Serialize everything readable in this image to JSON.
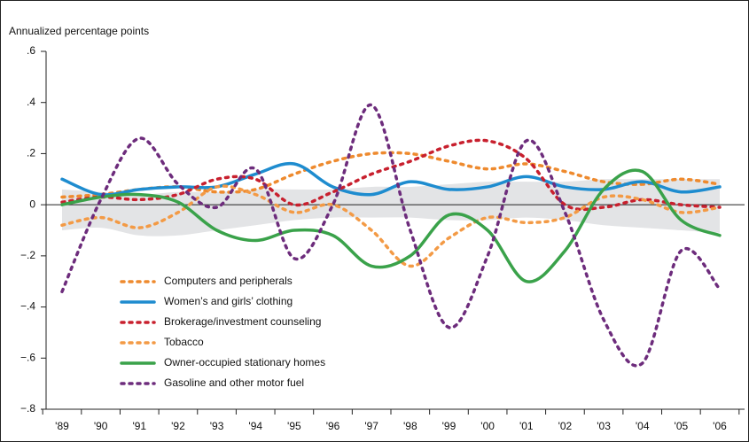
{
  "chart_data": {
    "type": "line",
    "ylabel": "Annualized percentage points",
    "categories": [
      "'89",
      "'90",
      "'91",
      "'92",
      "'93",
      "'94",
      "'95",
      "'96",
      "'97",
      "'98",
      "'99",
      "'00",
      "'01",
      "'02",
      "'03",
      "'04",
      "'05",
      "'06"
    ],
    "ylim": [
      -0.8,
      0.6
    ],
    "yticks": [
      {
        "value": 0.6,
        "label": ".6"
      },
      {
        "value": 0.4,
        "label": ".4"
      },
      {
        "value": 0.2,
        "label": ".2"
      },
      0,
      {
        "value": -0.2,
        "label": "−.2"
      },
      {
        "value": -0.4,
        "label": "−.4"
      },
      {
        "value": -0.6,
        "label": "−.6"
      },
      {
        "value": -0.8,
        "label": "−.8"
      }
    ],
    "band": {
      "color": "#e3e4e6",
      "lower": [
        -0.1,
        -0.09,
        -0.12,
        -0.12,
        -0.1,
        -0.08,
        -0.06,
        -0.05,
        -0.05,
        -0.05,
        -0.06,
        -0.06,
        -0.05,
        -0.06,
        -0.08,
        -0.09,
        -0.1,
        -0.11
      ],
      "upper": [
        0.06,
        0.05,
        0.04,
        0.05,
        0.05,
        0.06,
        0.06,
        0.06,
        0.07,
        0.07,
        0.08,
        0.09,
        0.09,
        0.09,
        0.1,
        0.1,
        0.1,
        0.1
      ]
    },
    "series": [
      {
        "name": "Computers and peripherals",
        "color": "#ee8a2e",
        "dashed": true,
        "values": [
          0.03,
          0.04,
          0.06,
          0.07,
          0.05,
          0.06,
          0.12,
          0.17,
          0.2,
          0.2,
          0.17,
          0.14,
          0.16,
          0.13,
          0.09,
          0.08,
          0.1,
          0.08
        ]
      },
      {
        "name": "Women’s and girls’ clothing",
        "color": "#1e8ccf",
        "dashed": false,
        "values": [
          0.1,
          0.04,
          0.06,
          0.07,
          0.07,
          0.12,
          0.16,
          0.07,
          0.04,
          0.09,
          0.06,
          0.07,
          0.11,
          0.07,
          0.06,
          0.09,
          0.05,
          0.07
        ]
      },
      {
        "name": "Brokerage/investment counseling",
        "color": "#c8202e",
        "dashed": true,
        "values": [
          0.01,
          0.03,
          0.02,
          0.04,
          0.1,
          0.1,
          0.0,
          0.05,
          0.12,
          0.17,
          0.23,
          0.25,
          0.18,
          0.0,
          -0.01,
          0.02,
          0.0,
          -0.01
        ]
      },
      {
        "name": "Tobacco",
        "color": "#f39a45",
        "dashed": true,
        "values": [
          -0.08,
          -0.05,
          -0.09,
          -0.03,
          0.07,
          0.04,
          -0.03,
          0.0,
          -0.1,
          -0.24,
          -0.13,
          -0.05,
          -0.07,
          -0.05,
          0.03,
          0.02,
          -0.03,
          -0.01
        ]
      },
      {
        "name": "Owner-occupied stationary homes",
        "color": "#3aa24a",
        "dashed": false,
        "values": [
          0.0,
          0.03,
          0.04,
          0.01,
          -0.1,
          -0.14,
          -0.1,
          -0.12,
          -0.24,
          -0.2,
          -0.04,
          -0.1,
          -0.3,
          -0.18,
          0.06,
          0.13,
          -0.06,
          -0.12
        ]
      },
      {
        "name": "Gasoline and other motor fuel",
        "color": "#6d2c7c",
        "dashed": true,
        "values": [
          -0.34,
          0.02,
          0.26,
          0.08,
          -0.01,
          0.14,
          -0.21,
          0.0,
          0.39,
          -0.1,
          -0.48,
          -0.2,
          0.25,
          -0.03,
          -0.45,
          -0.62,
          -0.18,
          -0.33
        ]
      }
    ]
  }
}
